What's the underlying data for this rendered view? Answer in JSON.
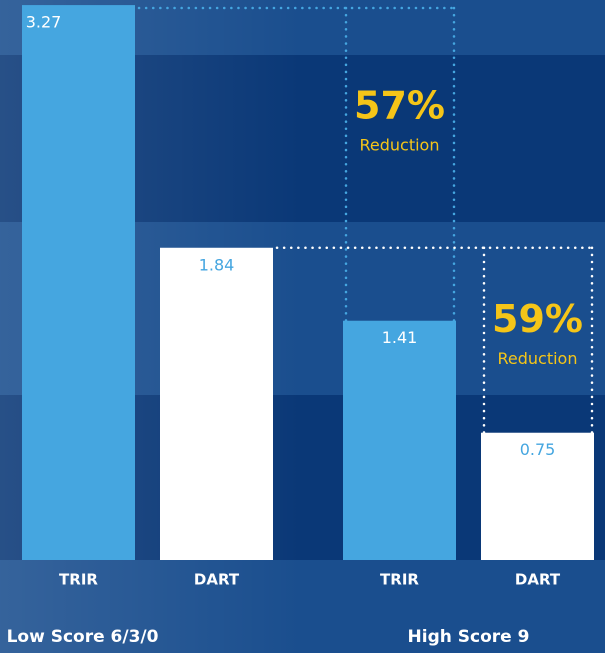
{
  "chart_data": {
    "type": "bar",
    "categories": [
      "Low Score 6/3/0",
      "High Score 9"
    ],
    "series": [
      {
        "name": "TRIR",
        "color": "#45a6e0",
        "values": [
          3.27,
          1.41
        ]
      },
      {
        "name": "DART",
        "color": "#ffffff",
        "values": [
          1.84,
          0.75
        ]
      }
    ],
    "ylim": [
      0,
      3.3
    ],
    "annotations": [
      {
        "label": "57%",
        "text": "Reduction"
      },
      {
        "label": "59%",
        "text": "Reduction"
      }
    ]
  }
}
